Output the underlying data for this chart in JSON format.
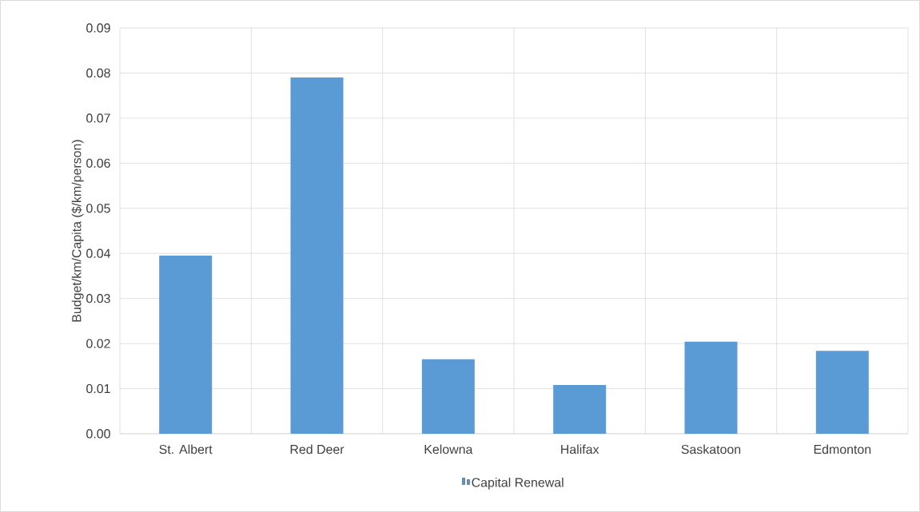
{
  "chart_data": {
    "type": "bar",
    "ylabel": "Budget/km/Capita ($/km/person)",
    "categories": [
      "St. Albert",
      "Red Deer",
      "Kelowna",
      "Halifax",
      "Saskatoon",
      "Edmonton"
    ],
    "series": [
      {
        "name": "Capital Renewal",
        "color": "#5b9bd5",
        "values": [
          0.0395,
          0.079,
          0.0165,
          0.0108,
          0.0204,
          0.0184
        ]
      }
    ],
    "ylim": [
      0,
      0.09
    ],
    "yticks": [
      {
        "value": 0,
        "label": "0.00"
      },
      {
        "value": 0.01,
        "label": "0.01"
      },
      {
        "value": 0.02,
        "label": "0.02"
      },
      {
        "value": 0.03,
        "label": "0.03"
      },
      {
        "value": 0.04,
        "label": "0.04"
      },
      {
        "value": 0.05,
        "label": "0.05"
      },
      {
        "value": 0.06,
        "label": "0.06"
      },
      {
        "value": 0.07,
        "label": "0.07"
      },
      {
        "value": 0.08,
        "label": "0.08"
      },
      {
        "value": 0.09,
        "label": "0.09"
      }
    ],
    "grid": true,
    "legend": "bottom"
  }
}
